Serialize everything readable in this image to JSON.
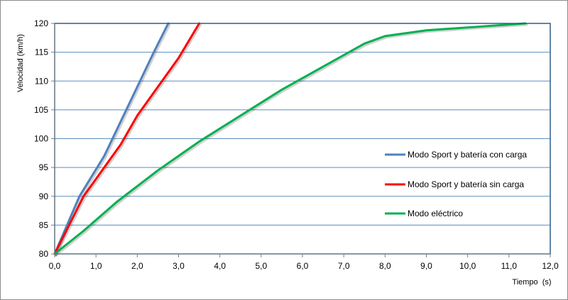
{
  "chart_data": {
    "type": "line",
    "xlabel": "Tiempo  (s)",
    "ylabel": "Velocidad (km/h)",
    "xlim": [
      0,
      12
    ],
    "ylim": [
      80,
      120
    ],
    "x_ticks": [
      "0,0",
      "1,0",
      "2,0",
      "3,0",
      "4,0",
      "5,0",
      "6,0",
      "7,0",
      "8,0",
      "9,0",
      "10,0",
      "11,0",
      "12,0"
    ],
    "y_ticks": [
      "80",
      "85",
      "90",
      "95",
      "100",
      "105",
      "110",
      "115",
      "120"
    ],
    "grid": "horizontal",
    "legend_position": "right",
    "plot_background": "#ffffff",
    "grid_color": "#5b8fbf",
    "series": [
      {
        "name": "Modo Sport y batería con carga",
        "color": "#4f81bd",
        "x": [
          0,
          0.6,
          1.2,
          1.6,
          2.0,
          2.4,
          2.75
        ],
        "y": [
          80,
          90,
          97,
          103,
          109,
          115,
          120
        ]
      },
      {
        "name": "Modo Sport y batería sin carga",
        "color": "#ff0000",
        "x": [
          0,
          0.7,
          1.2,
          1.6,
          2.0,
          2.5,
          3.0,
          3.5
        ],
        "y": [
          80,
          90,
          95,
          99,
          104,
          109,
          114,
          120
        ]
      },
      {
        "name": "Modo eléctrico",
        "color": "#00b050",
        "x": [
          0,
          0.7,
          1.5,
          2.5,
          3.5,
          4.5,
          5.5,
          6.5,
          7.5,
          8.0,
          9.0,
          10.0,
          11.0,
          11.4
        ],
        "y": [
          80,
          84,
          89,
          94.5,
          99.5,
          104,
          108.5,
          112.5,
          116.5,
          117.8,
          118.8,
          119.3,
          119.8,
          120
        ]
      }
    ]
  }
}
